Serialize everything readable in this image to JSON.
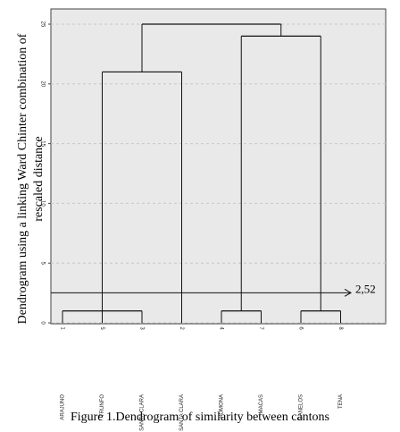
{
  "chart_data": {
    "type": "dendrogram",
    "caption": "Figure 1.Dendrogram of similarity between cantons",
    "y_label": [
      "Dendrogram using a linking Ward Chinter combination of",
      "rescaled distance"
    ],
    "ylim": [
      0,
      25
    ],
    "yticks": [
      0,
      5,
      10,
      15,
      20,
      25
    ],
    "grid": true,
    "threshold": {
      "value": 2.52,
      "label": "2,52"
    },
    "tree": {
      "height": 25,
      "children": [
        {
          "height": 21,
          "children": [
            {
              "height": 1,
              "children": [
                {
                  "label": "1",
                  "name": "ARAJUNO"
                },
                {
                  "label": "5",
                  "name": "TRUNFO"
                },
                {
                  "label": "3",
                  "name": "SANTA CLARA"
                }
              ]
            },
            {
              "label": "2",
              "name": "SANTA CLARA"
            }
          ]
        },
        {
          "height": 24,
          "children": [
            {
              "height": 1,
              "children": [
                {
                  "label": "4",
                  "name": "POMONA"
                },
                {
                  "label": "7",
                  "name": "MACAS"
                }
              ]
            },
            {
              "height": 1,
              "children": [
                {
                  "label": "6",
                  "name": "CANELOS"
                },
                {
                  "label": "8",
                  "name": "TENA"
                }
              ]
            }
          ]
        }
      ]
    }
  }
}
